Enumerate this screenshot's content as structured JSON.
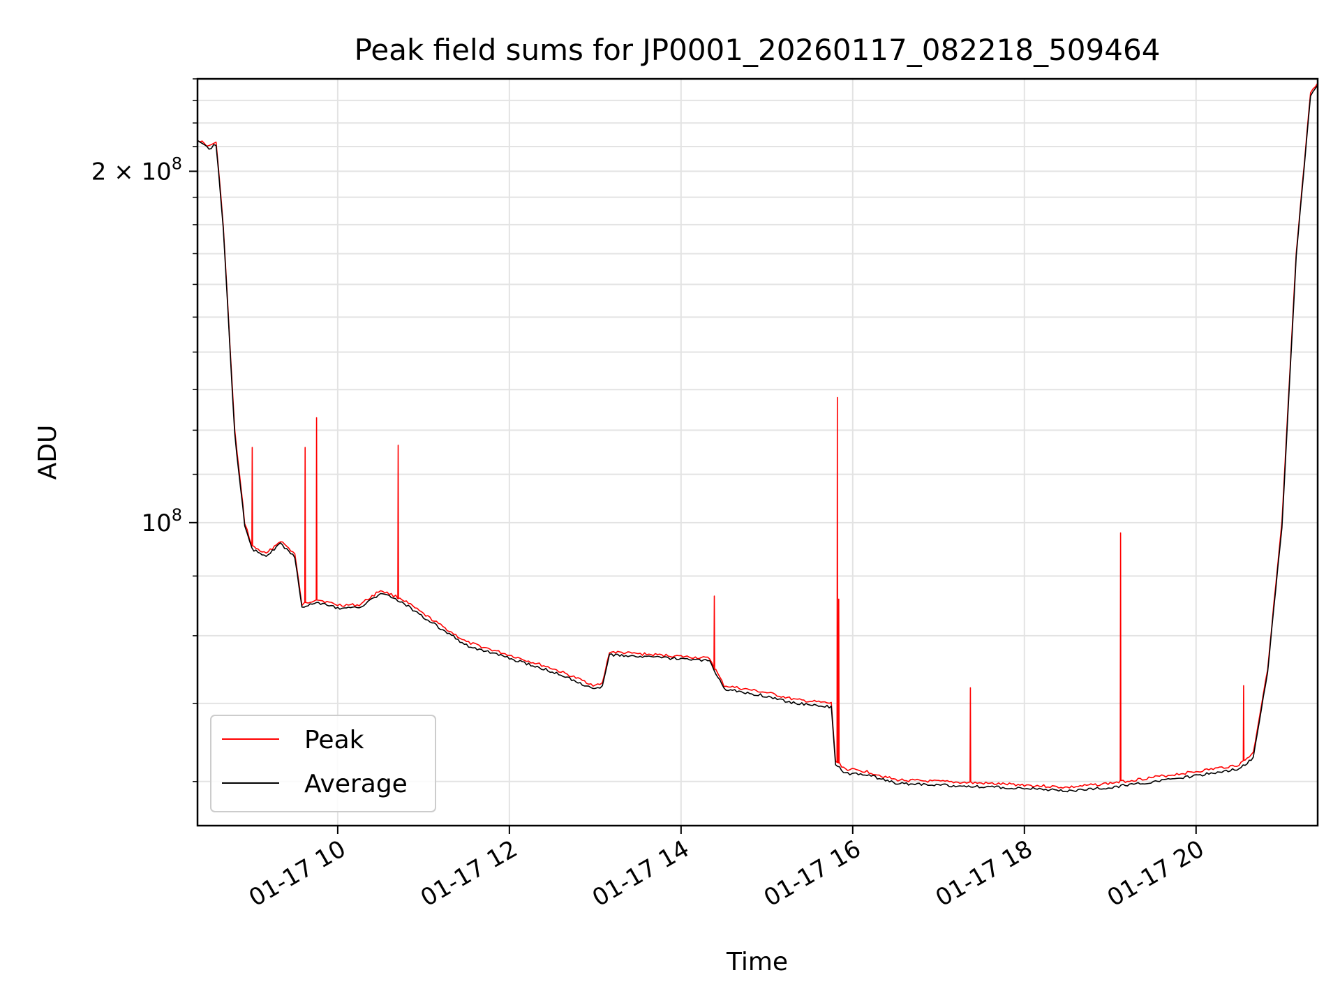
{
  "chart_data": {
    "type": "line",
    "title": "Peak field sums for JP0001_20260117_082218_509464",
    "xlabel": "Time",
    "ylabel": "ADU",
    "yscale": "log",
    "grid": true,
    "legend_position": "lower-left",
    "xlim": [
      "01-17 08:22",
      "01-17 21:25"
    ],
    "ylim": [
      55000000,
      240000000
    ],
    "x_ticks": [
      "01-17 10",
      "01-17 12",
      "01-17 14",
      "01-17 16",
      "01-17 18",
      "01-17 20"
    ],
    "y_tick_labels": [
      {
        "value": 100000000,
        "mantissa": "10",
        "exponent": "8"
      },
      {
        "value": 200000000,
        "mantissa": "2 × 10",
        "exponent": "8"
      }
    ],
    "series": [
      {
        "name": "Peak",
        "color": "#ff0000",
        "x": [
          "08:22",
          "08:30",
          "08:35",
          "08:40",
          "08:48",
          "08:55",
          "09:00",
          "09:10",
          "09:20",
          "09:30",
          "09:35",
          "09:45",
          "10:00",
          "10:15",
          "10:30",
          "10:45",
          "11:00",
          "11:30",
          "12:00",
          "12:30",
          "13:00",
          "13:05",
          "13:10",
          "13:30",
          "14:00",
          "14:20",
          "14:30",
          "15:00",
          "15:20",
          "15:45",
          "15:48",
          "15:55",
          "16:10",
          "16:30",
          "17:00",
          "17:30",
          "18:00",
          "18:30",
          "19:00",
          "19:30",
          "20:00",
          "20:30",
          "20:40",
          "20:50",
          "21:00",
          "21:10",
          "21:20",
          "21:25"
        ],
        "y": [
          213000000,
          210000000,
          212000000,
          180000000,
          120000000,
          100000000,
          95500000,
          94000000,
          96500000,
          94000000,
          85000000,
          86000000,
          85000000,
          85000000,
          87500000,
          86000000,
          83500000,
          79000000,
          77000000,
          75000000,
          72500000,
          72800000,
          77500000,
          77200000,
          76800000,
          76500000,
          72500000,
          71500000,
          70500000,
          70000000,
          62500000,
          61500000,
          61200000,
          60200000,
          60000000,
          59800000,
          59600000,
          59300000,
          59800000,
          60500000,
          61200000,
          62000000,
          63500000,
          75000000,
          100000000,
          170000000,
          233000000,
          238000000
        ],
        "spikes": [
          {
            "x": "09:00",
            "y": 116000000
          },
          {
            "x": "09:37",
            "y": 116000000
          },
          {
            "x": "09:45",
            "y": 123000000
          },
          {
            "x": "10:42",
            "y": 116500000
          },
          {
            "x": "14:23",
            "y": 86500000
          },
          {
            "x": "15:49",
            "y": 128000000
          },
          {
            "x": "15:50",
            "y": 86000000
          },
          {
            "x": "17:22",
            "y": 72200000
          },
          {
            "x": "19:07",
            "y": 98000000
          },
          {
            "x": "20:33",
            "y": 72500000
          }
        ]
      },
      {
        "name": "Average",
        "color": "#000000",
        "x": [
          "08:22",
          "08:30",
          "08:35",
          "08:40",
          "08:48",
          "08:55",
          "09:00",
          "09:10",
          "09:20",
          "09:30",
          "09:35",
          "09:45",
          "10:00",
          "10:15",
          "10:30",
          "10:45",
          "11:00",
          "11:30",
          "12:00",
          "12:30",
          "13:00",
          "13:05",
          "13:10",
          "13:30",
          "14:00",
          "14:20",
          "14:30",
          "15:00",
          "15:20",
          "15:45",
          "15:48",
          "15:55",
          "16:10",
          "16:30",
          "17:00",
          "17:30",
          "18:00",
          "18:30",
          "19:00",
          "19:30",
          "20:00",
          "20:30",
          "20:40",
          "20:50",
          "21:00",
          "21:10",
          "21:20",
          "21:25"
        ],
        "y": [
          212000000,
          209000000,
          211000000,
          179000000,
          119000000,
          99500000,
          95000000,
          93500000,
          96000000,
          93500000,
          84500000,
          85500000,
          84500000,
          84500000,
          87000000,
          85500000,
          83000000,
          78500000,
          76500000,
          74500000,
          72000000,
          72300000,
          77000000,
          76800000,
          76400000,
          76100000,
          72000000,
          71000000,
          70000000,
          69500000,
          62000000,
          61000000,
          60800000,
          59800000,
          59600000,
          59400000,
          59200000,
          58900000,
          59300000,
          60000000,
          60700000,
          61500000,
          62800000,
          74500000,
          99000000,
          169000000,
          232000000,
          237000000
        ]
      }
    ]
  }
}
